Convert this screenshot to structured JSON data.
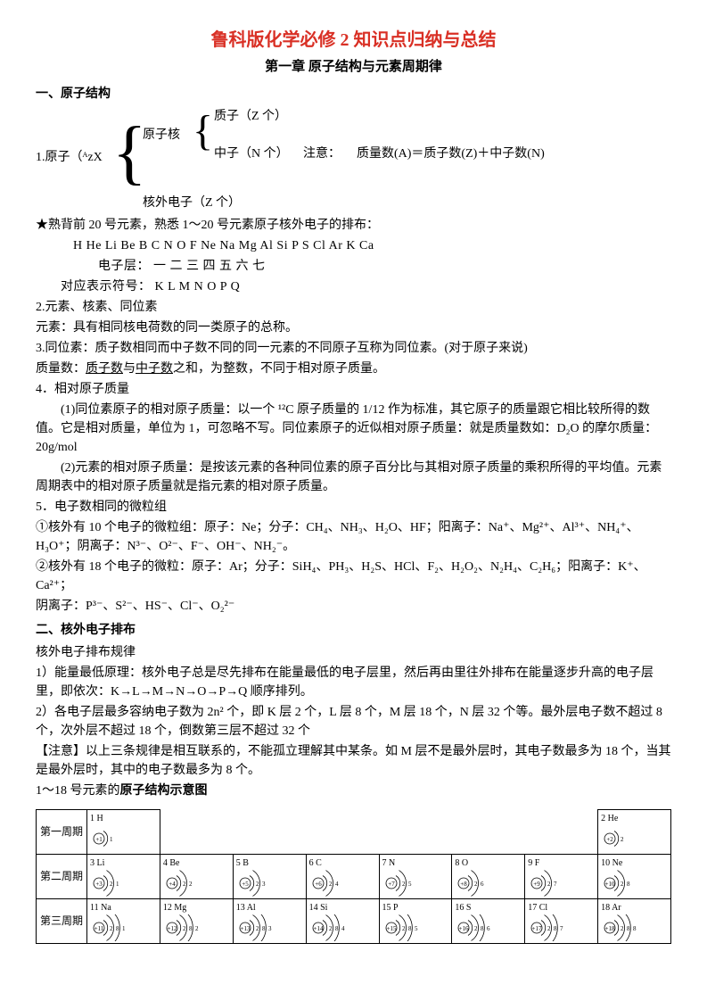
{
  "doc": {
    "title": "鲁科版化学必修 2 知识点归纳与总结",
    "chapter": "第一章 原子结构与元素周期律",
    "h1": "一、原子结构",
    "struct": {
      "proton": "质子（Z 个）",
      "nucleus": "原子核",
      "neutron": "中子（N 个）",
      "note": "注意：",
      "mass_eq": "质量数(A)＝质子数(Z)＋中子数(N)",
      "atom_label": "1.原子（ᴬzX",
      "electron": "核外电子（Z 个）"
    },
    "star": "★熟背前 20 号元素，熟悉 1～20 号元素原子核外电子的排布：",
    "elements": "H  He  Li  Be  B  C  N  O  F  Ne  Na  Mg  Al  Si  P  S  Cl  Ar  K  Ca",
    "shells_label": "电子层：   一      二      三       四       五     六     七",
    "symbols_label": "对应表示符号：  K      L      M       N       O      P      Q",
    "s2": "2.元素、核素、同位素",
    "s2a": "元素：具有相同核电荷数的同一类原子的总称。",
    "s3": "3.同位素：质子数相同而中子数不同的同一元素的不同原子互称为同位素。(对于原子来说)",
    "s3a": "质量数：质子数与中子数之和，为整数，不同于相对原子质量。",
    "s4": "4．相对原子质量",
    "s4a": "(1)同位素原子的相对原子质量：以一个 ¹²C 原子质量的 1/12 作为标准，其它原子的质量跟它相比较所得的数值。它是相对质量，单位为 1，可忽略不写。同位素原子的近似相对原子质量：就是质量数如：D₂O 的摩尔质量：20g/mol",
    "s4b": "(2)元素的相对原子质量：是按该元素的各种同位素的原子百分比与其相对原子质量的乘积所得的平均值。元素周期表中的相对原子质量就是指元素的相对原子质量。",
    "s5": "5．电子数相同的微粒组",
    "s5a": "①核外有 10 个电子的微粒组：原子：Ne；分子：CH₄、NH₃、H₂O、HF；阳离子：Na⁺、Mg²⁺、Al³⁺、NH₄⁺、H₃O⁺；阴离子：N³⁻、O²⁻、F⁻、OH⁻、NH₂⁻。",
    "s5b": "②核外有 18 个电子的微粒：原子：Ar；分子：SiH₄、PH₃、H₂S、HCl、F₂、H₂O₂、N₂H₄、C₂H₆；阳离子：K⁺、Ca²⁺；",
    "s5c": "阴离子：P³⁻、S²⁻、HS⁻、Cl⁻、O₂²⁻",
    "h2": "二、核外电子排布",
    "h2a": "核外电子排布规律",
    "r1": "1）能量最低原理：核外电子总是尽先排布在能量最低的电子层里，然后再由里往外排布在能量逐步升高的电子层里，即依次：K→L→M→N→O→P→Q 顺序排列。",
    "r2": "2）各电子层最多容纳电子数为 2n² 个，即 K 层 2 个，L 层 8 个，M 层 18 个，N 层 32 个等。最外层电子数不超过 8 个，次外层不超过 18 个，倒数第三层不超过 32 个",
    "r3": "【注意】以上三条规律是相互联系的，不能孤立理解其中某条。如 M 层不是最外层时，其电子数最多为 18 个，当其是最外层时，其中的电子数最多为 8 个。",
    "r4": "1～18 号元素的原子结构示意图",
    "table": {
      "row_labels": [
        "第一周期",
        "第二周期",
        "第三周期"
      ],
      "rows": [
        [
          {
            "n": "1 H",
            "s": [
              1
            ]
          },
          null,
          null,
          null,
          null,
          null,
          null,
          {
            "n": "2 He",
            "s": [
              2
            ]
          }
        ],
        [
          {
            "n": "3 Li",
            "s": [
              2,
              1
            ]
          },
          {
            "n": "4 Be",
            "s": [
              2,
              2
            ]
          },
          {
            "n": "5 B",
            "s": [
              2,
              3
            ]
          },
          {
            "n": "6 C",
            "s": [
              2,
              4
            ]
          },
          {
            "n": "7 N",
            "s": [
              2,
              5
            ]
          },
          {
            "n": "8 O",
            "s": [
              2,
              6
            ]
          },
          {
            "n": "9 F",
            "s": [
              2,
              7
            ]
          },
          {
            "n": "10 Ne",
            "s": [
              2,
              8
            ]
          }
        ],
        [
          {
            "n": "11 Na",
            "s": [
              2,
              8,
              1
            ]
          },
          {
            "n": "12 Mg",
            "s": [
              2,
              8,
              2
            ]
          },
          {
            "n": "13 Al",
            "s": [
              2,
              8,
              3
            ]
          },
          {
            "n": "14 Si",
            "s": [
              2,
              8,
              4
            ]
          },
          {
            "n": "15 P",
            "s": [
              2,
              8,
              5
            ]
          },
          {
            "n": "16 S",
            "s": [
              2,
              8,
              6
            ]
          },
          {
            "n": "17 Cl",
            "s": [
              2,
              8,
              7
            ]
          },
          {
            "n": "18 Ar",
            "s": [
              2,
              8,
              8
            ]
          }
        ]
      ],
      "colors": {
        "border": "#000000",
        "text": "#000000"
      }
    }
  }
}
